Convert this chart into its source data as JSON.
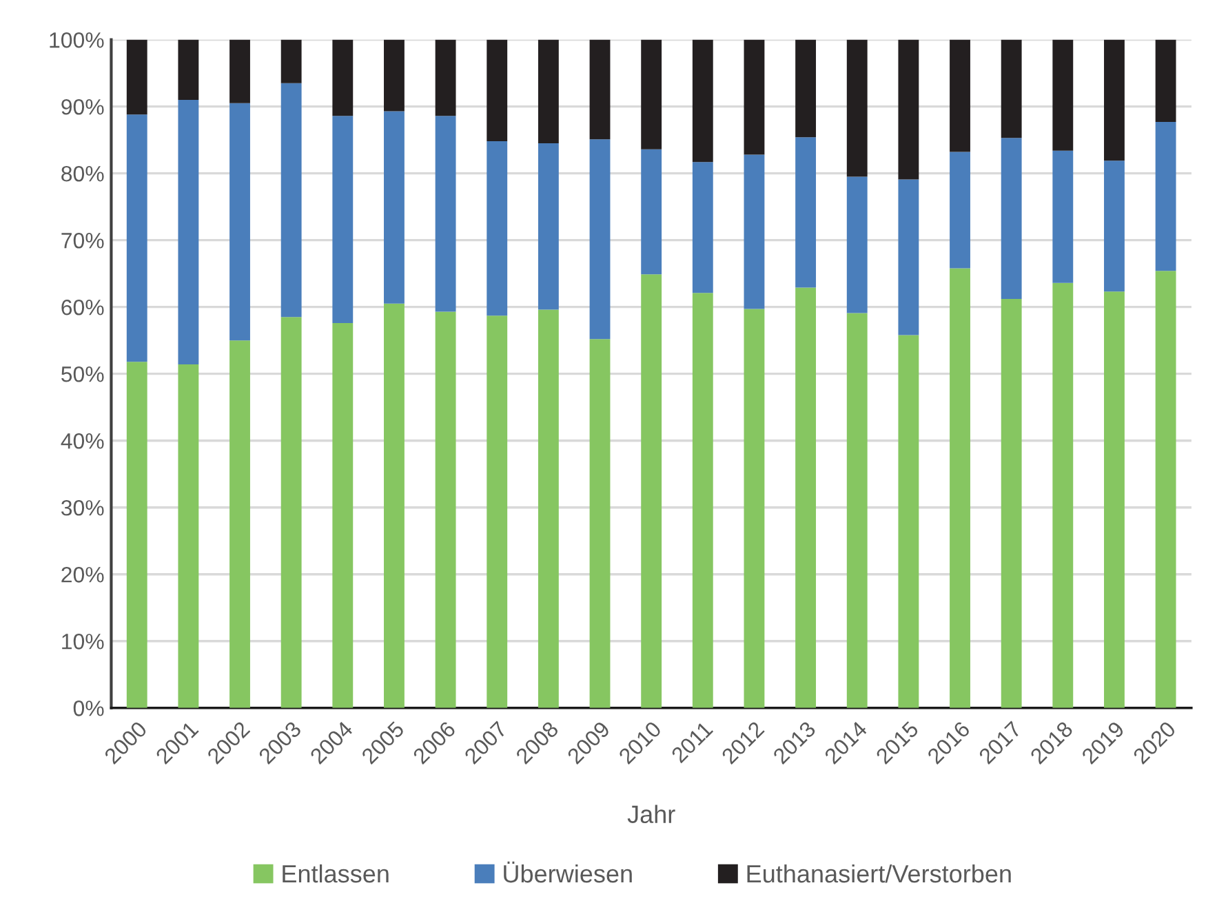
{
  "chart_data": {
    "type": "bar",
    "stacked": true,
    "xlabel": "Jahr",
    "categories": [
      "2000",
      "2001",
      "2002",
      "2003",
      "2004",
      "2005",
      "2006",
      "2007",
      "2008",
      "2009",
      "2010",
      "2011",
      "2012",
      "2013",
      "2014",
      "2015",
      "2016",
      "2017",
      "2018",
      "2019",
      "2020"
    ],
    "series": [
      {
        "name": "Entlassen",
        "color": "#86c661",
        "values": [
          51.8,
          51.4,
          55.0,
          58.5,
          57.6,
          60.5,
          59.3,
          58.7,
          59.6,
          55.2,
          64.9,
          62.1,
          59.7,
          62.9,
          59.1,
          55.8,
          65.8,
          61.2,
          63.6,
          62.3,
          65.4
        ]
      },
      {
        "name": "Überwiesen",
        "color": "#4a7ebb",
        "values": [
          37.0,
          39.6,
          35.5,
          35.0,
          31.0,
          28.8,
          29.3,
          26.1,
          24.9,
          29.9,
          18.7,
          19.6,
          23.1,
          22.5,
          20.4,
          23.3,
          17.4,
          24.1,
          19.8,
          19.6,
          22.3
        ]
      },
      {
        "name": "Euthanasiert/Verstorben",
        "color": "#231f20",
        "values": [
          11.2,
          9.0,
          9.5,
          6.5,
          11.4,
          10.7,
          11.4,
          15.2,
          15.5,
          14.9,
          16.4,
          18.3,
          17.2,
          14.6,
          20.5,
          20.9,
          16.8,
          14.7,
          16.6,
          18.1,
          12.3
        ]
      }
    ],
    "ylim": [
      0,
      100
    ],
    "yticks": [
      {
        "value": 0,
        "label": "0%"
      },
      {
        "value": 10,
        "label": "10%"
      },
      {
        "value": 20,
        "label": "20%"
      },
      {
        "value": 30,
        "label": "30%"
      },
      {
        "value": 40,
        "label": "40%"
      },
      {
        "value": 50,
        "label": "50%"
      },
      {
        "value": 60,
        "label": "60%"
      },
      {
        "value": 70,
        "label": "70%"
      },
      {
        "value": 80,
        "label": "80%"
      },
      {
        "value": 90,
        "label": "90%"
      },
      {
        "value": 100,
        "label": "100%"
      }
    ],
    "grid": "y",
    "legend": "bottom"
  }
}
